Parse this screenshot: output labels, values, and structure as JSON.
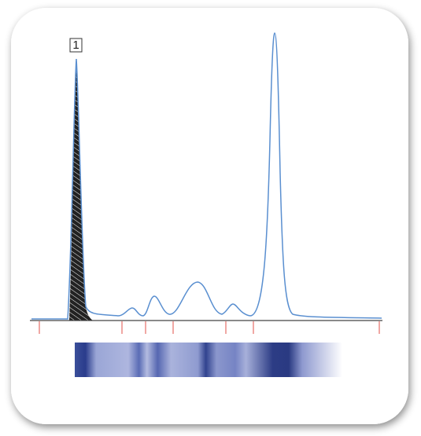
{
  "peak_marker": {
    "label": "1"
  }
}
